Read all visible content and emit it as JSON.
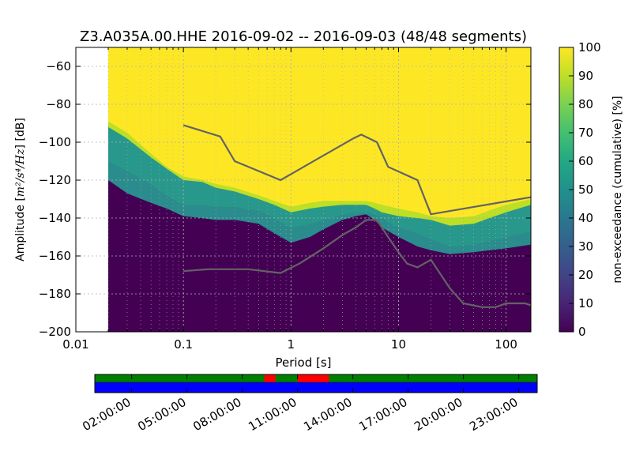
{
  "chart_data": {
    "type": "heatmap",
    "title": "Z3.A035A.00.HHE   2016-09-02 -- 2016-09-03  (48/48 segments)",
    "xlabel": "Period [s]",
    "ylabel_prefix": "Amplitude [",
    "ylabel_units": "m²/s⁴/Hz",
    "ylabel_suffix": "] [dB]",
    "x_scale": "log",
    "xlim": [
      0.01,
      170
    ],
    "ylim": [
      -200,
      -50
    ],
    "x_tick_values": [
      0.01,
      0.1,
      1,
      10,
      100
    ],
    "x_tick_labels": [
      "0.01",
      "0.1",
      "1",
      "10",
      "100"
    ],
    "y_tick_values": [
      -200,
      -180,
      -160,
      -140,
      -120,
      -100,
      -80,
      -60
    ],
    "y_tick_labels": [
      "−200",
      "−180",
      "−160",
      "−140",
      "−120",
      "−100",
      "−80",
      "−60"
    ],
    "data_period_start": 0.02,
    "grid": true,
    "colormap": "viridis",
    "colorbar": {
      "label": "non-exceedance (cumulative) [%]",
      "range": [
        0,
        100
      ],
      "tick_values": [
        0,
        10,
        20,
        30,
        40,
        50,
        60,
        70,
        80,
        90,
        100
      ],
      "tick_labels": [
        "0",
        "10",
        "20",
        "30",
        "40",
        "50",
        "60",
        "70",
        "80",
        "90",
        "100"
      ]
    },
    "distribution_boundaries": {
      "period": [
        0.02,
        0.03,
        0.05,
        0.07,
        0.1,
        0.15,
        0.2,
        0.3,
        0.5,
        0.7,
        1,
        1.5,
        2,
        3,
        4,
        5,
        6,
        7,
        10,
        15,
        20,
        30,
        50,
        70,
        100,
        170
      ],
      "p0": [
        -120,
        -127,
        -132,
        -135,
        -139,
        -140,
        -141,
        -141,
        -143,
        -148,
        -153,
        -150,
        -146,
        -141,
        -139,
        -138,
        -141,
        -145,
        -150,
        -155,
        -157,
        -159,
        -158,
        -157,
        -156,
        -154
      ],
      "p50": [
        -110,
        -115,
        -122,
        -128,
        -133,
        -133,
        -134,
        -134,
        -136,
        -140,
        -145,
        -143,
        -141,
        -138,
        -137,
        -137,
        -138,
        -140,
        -145,
        -148,
        -151,
        -155,
        -154,
        -152,
        -150,
        -147
      ],
      "p90": [
        -92,
        -98,
        -108,
        -114,
        -120,
        -121,
        -124,
        -126,
        -130,
        -133,
        -137,
        -135,
        -134,
        -133,
        -133,
        -133,
        -135,
        -137,
        -139,
        -140,
        -141,
        -144,
        -143,
        -140,
        -137,
        -133
      ],
      "p100": [
        -89,
        -95,
        -106,
        -113,
        -118,
        -120,
        -122,
        -124,
        -128,
        -131,
        -134,
        -132,
        -131,
        -131,
        -131,
        -131,
        -132,
        -133,
        -135,
        -137,
        -139,
        -140,
        -139,
        -136,
        -133,
        -130
      ]
    },
    "series": [
      {
        "name": "",
        "x": [
          0.1,
          0.22,
          0.3,
          0.8,
          3.8,
          4.5,
          6.3,
          8,
          15,
          20,
          170
        ],
        "y": [
          -91,
          -97,
          -110,
          -120,
          -98,
          -96,
          -100,
          -113,
          -120,
          -138,
          -129
        ]
      },
      {
        "name": "",
        "x": [
          0.1,
          0.17,
          0.4,
          0.8,
          1.2,
          2,
          3,
          4,
          5,
          6.3,
          8,
          10,
          12,
          15,
          20,
          30,
          40,
          60,
          80,
          100,
          150,
          170
        ],
        "y": [
          -168,
          -167,
          -167,
          -169,
          -164,
          -156,
          -149,
          -145,
          -141,
          -141,
          -150,
          -158,
          -164,
          -166,
          -162,
          -177,
          -185,
          -187,
          -187,
          -185,
          -185,
          -186
        ]
      }
    ]
  },
  "timeline": {
    "tick_labels": [
      "02:00:00",
      "05:00:00",
      "08:00:00",
      "11:00:00",
      "14:00:00",
      "17:00:00",
      "20:00:00",
      "23:00:00"
    ],
    "span_hours": [
      0,
      24
    ],
    "tick_hours": [
      2,
      5,
      8,
      11,
      14,
      17,
      20,
      23
    ],
    "top_bar_color": "#008000",
    "bottom_bar_color": "#0000ff",
    "gap_color": "#ff0000",
    "gaps_hours": [
      [
        9.2,
        9.8
      ],
      [
        11.0,
        12.7
      ]
    ]
  },
  "colors": {
    "axis": "#000000",
    "grid": "#b0b0b0",
    "line": "#636363"
  }
}
